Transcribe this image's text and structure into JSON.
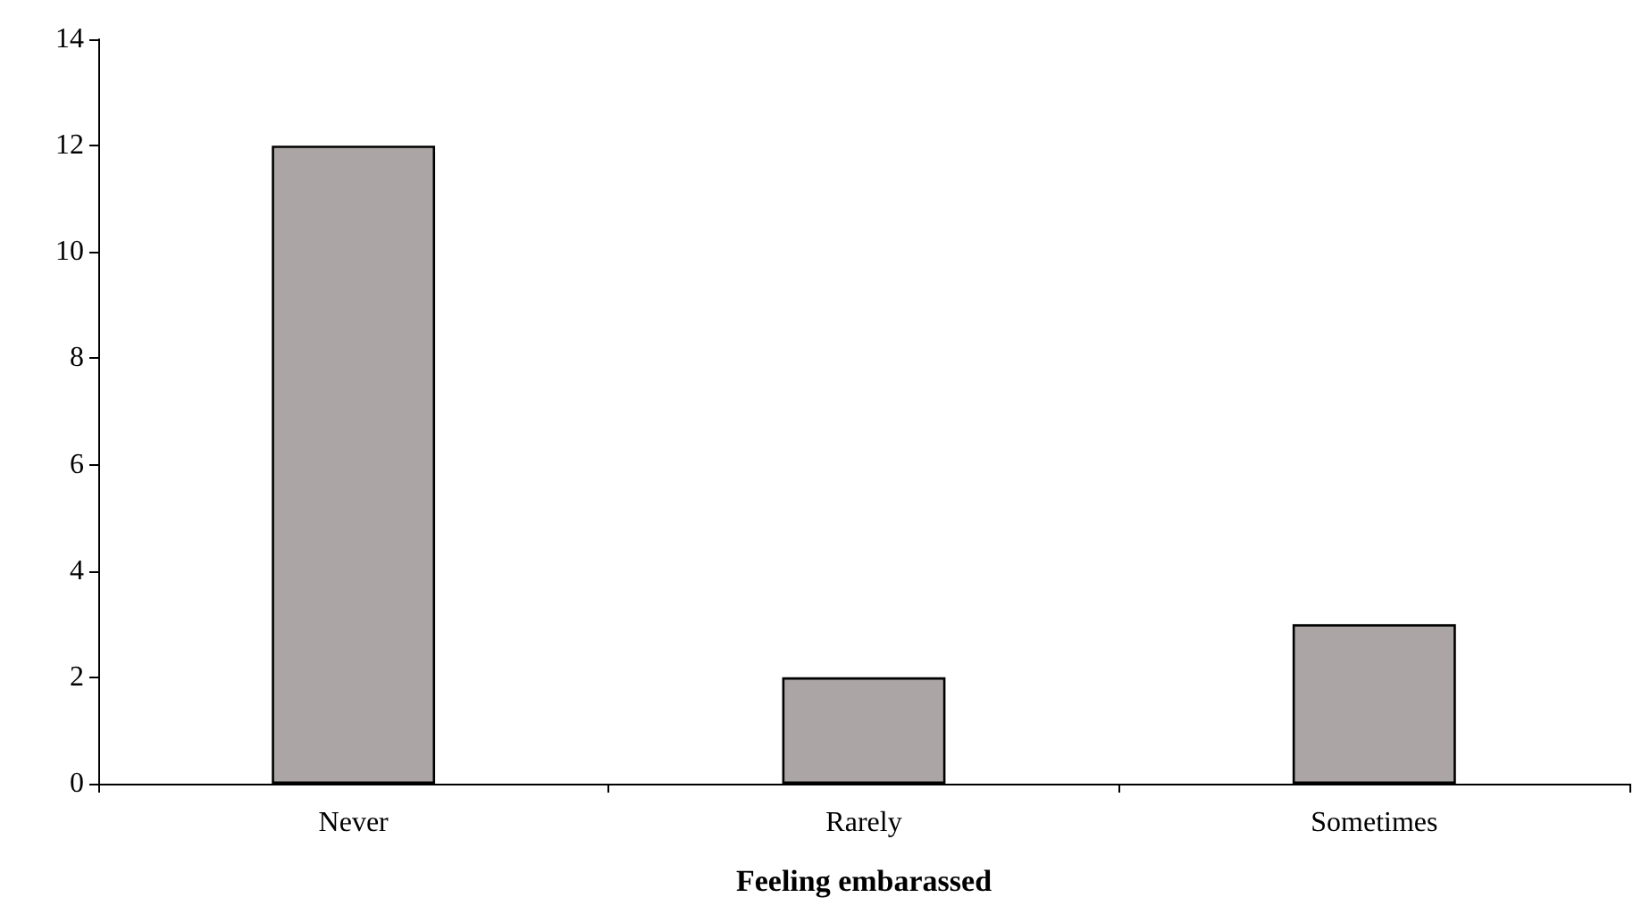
{
  "chart_data": {
    "type": "bar",
    "xlabel": "Feeling embarassed",
    "categories": [
      "Never",
      "Rarely",
      "Sometimes"
    ],
    "values": [
      12,
      2,
      3
    ],
    "color": "#aba6a5",
    "ylim": [
      0,
      14
    ],
    "yticks": [
      0,
      2,
      4,
      6,
      8,
      10,
      12,
      14
    ],
    "grid": false
  }
}
